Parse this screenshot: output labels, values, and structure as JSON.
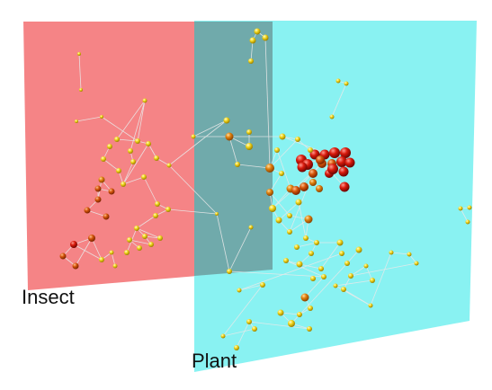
{
  "layers": {
    "insect": {
      "label": "Insect",
      "color": "#f47a7c"
    },
    "plant": {
      "label": "Plant",
      "color": "#7ff1f1"
    },
    "overlap_color": "#6fa7a8"
  },
  "node_colors": {
    "yellow": "#f1d61a",
    "orange": "#e0800d",
    "deep_orange": "#d4550a",
    "red": "#d81a0c"
  }
}
